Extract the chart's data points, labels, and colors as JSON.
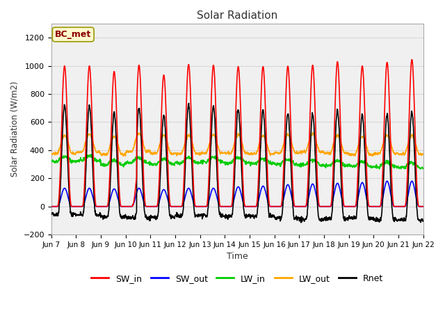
{
  "title": "Solar Radiation",
  "xlabel": "Time",
  "ylabel": "Solar Radiation (W/m2)",
  "annotation": "BC_met",
  "ylim": [
    -200,
    1300
  ],
  "yticks": [
    -200,
    0,
    200,
    400,
    600,
    800,
    1000,
    1200
  ],
  "xtick_labels": [
    "Jun 7",
    "Jun 8",
    "Jun 9",
    "Jun 10",
    "Jun 11",
    "Jun 12",
    "Jun 13",
    "Jun 14",
    "Jun 15",
    "Jun 16",
    "Jun 17",
    "Jun 18",
    "Jun 19",
    "Jun 20",
    "Jun 21",
    "Jun 22"
  ],
  "n_days": 15,
  "colors": {
    "SW_in": "#ff0000",
    "SW_out": "#0000ff",
    "LW_in": "#00cc00",
    "LW_out": "#ffa500",
    "Rnet": "#000000"
  },
  "linewidths": {
    "SW_in": 1.2,
    "SW_out": 1.2,
    "LW_in": 1.2,
    "LW_out": 1.2,
    "Rnet": 1.2
  },
  "fig_bg": "#ffffff",
  "plot_bg": "#f0f0f0",
  "grid_color": "#d8d8d8",
  "legend_labels": [
    "SW_in",
    "SW_out",
    "LW_in",
    "LW_out",
    "Rnet"
  ]
}
